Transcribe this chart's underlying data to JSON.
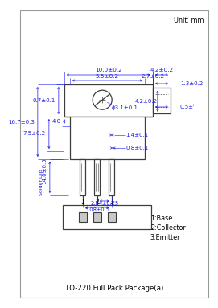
{
  "title": "TO-220 Full Pack Package(a)",
  "unit_label": "Unit: mm",
  "bg_color": "#ffffff",
  "line_color": "#3d3d3d",
  "dim_color": "#1a1aee",
  "text_color": "#000000",
  "legend": [
    "1:Base",
    "2:Collector",
    "3:Emitter"
  ],
  "pin_labels": [
    "1",
    "2",
    "3"
  ],
  "dimensions": {
    "top_width": "10.0±0.2",
    "inner_top_width": "5.5±0.2",
    "right_tab_width": "4.2±0.2",
    "right_tab_offset": "2.7±0.2",
    "body_height": "16.7±0.3",
    "upper_step_height": "7.5±0.2",
    "top_step_height": "0.7±0.1",
    "hole_label": "φ3.1±0.1",
    "right_inner_vert": "4.2±0.2",
    "lead_width": "1.4±0.1",
    "lead_thickness": "0.8±0.1",
    "lead_pitch": "2.54±0.25",
    "lead_span": "5.08±0.5",
    "solder_dip": "14.0±0.5",
    "solder_label": "Solder Dip",
    "step_down": "4.0",
    "tab_width_dim": "1.3±0.2",
    "tab_thickness_dim": "0.5±ⁱ"
  }
}
